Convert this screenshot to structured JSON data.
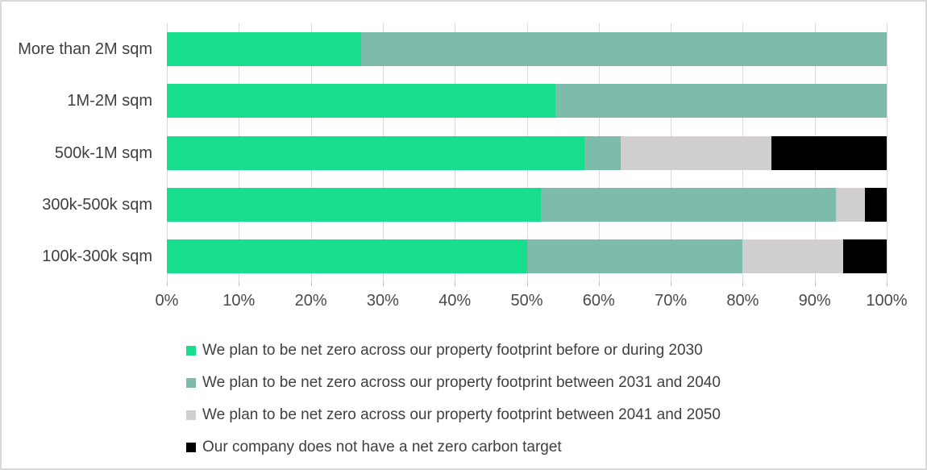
{
  "chart_data": {
    "type": "bar",
    "orientation": "horizontal",
    "stacked": true,
    "title": "",
    "xlabel": "",
    "ylabel": "",
    "xlim": [
      0,
      100
    ],
    "grid": true,
    "legend_position": "bottom",
    "x_ticks": [
      "0%",
      "10%",
      "20%",
      "30%",
      "40%",
      "50%",
      "60%",
      "70%",
      "80%",
      "90%",
      "100%"
    ],
    "categories": [
      "More than 2M sqm",
      "1M-2M sqm",
      "500k-1M sqm",
      "300k-500k sqm",
      "100k-300k sqm"
    ],
    "series": [
      {
        "name": "We plan to be net zero across our property footprint before or during 2030",
        "color": "#17de8d",
        "values": [
          27,
          54,
          58,
          52,
          50
        ]
      },
      {
        "name": "We plan to be net zero across our property footprint between 2031 and 2040",
        "color": "#7dbbab",
        "values": [
          73,
          46,
          5,
          41,
          30
        ]
      },
      {
        "name": "We plan to be net zero across our property footprint between 2041 and 2050",
        "color": "#d0cece",
        "values": [
          0,
          0,
          21,
          4,
          14
        ]
      },
      {
        "name": "Our company does not have a net zero carbon target",
        "color": "#000000",
        "values": [
          0,
          0,
          16,
          3,
          6
        ]
      }
    ]
  },
  "colors": {
    "gridline": "#d9d9d9",
    "tick": "#bfbfbf",
    "text": "#404040",
    "axis_text": "#4a4a4a",
    "frame_border": "#d9d9d9",
    "background": "#ffffff"
  }
}
